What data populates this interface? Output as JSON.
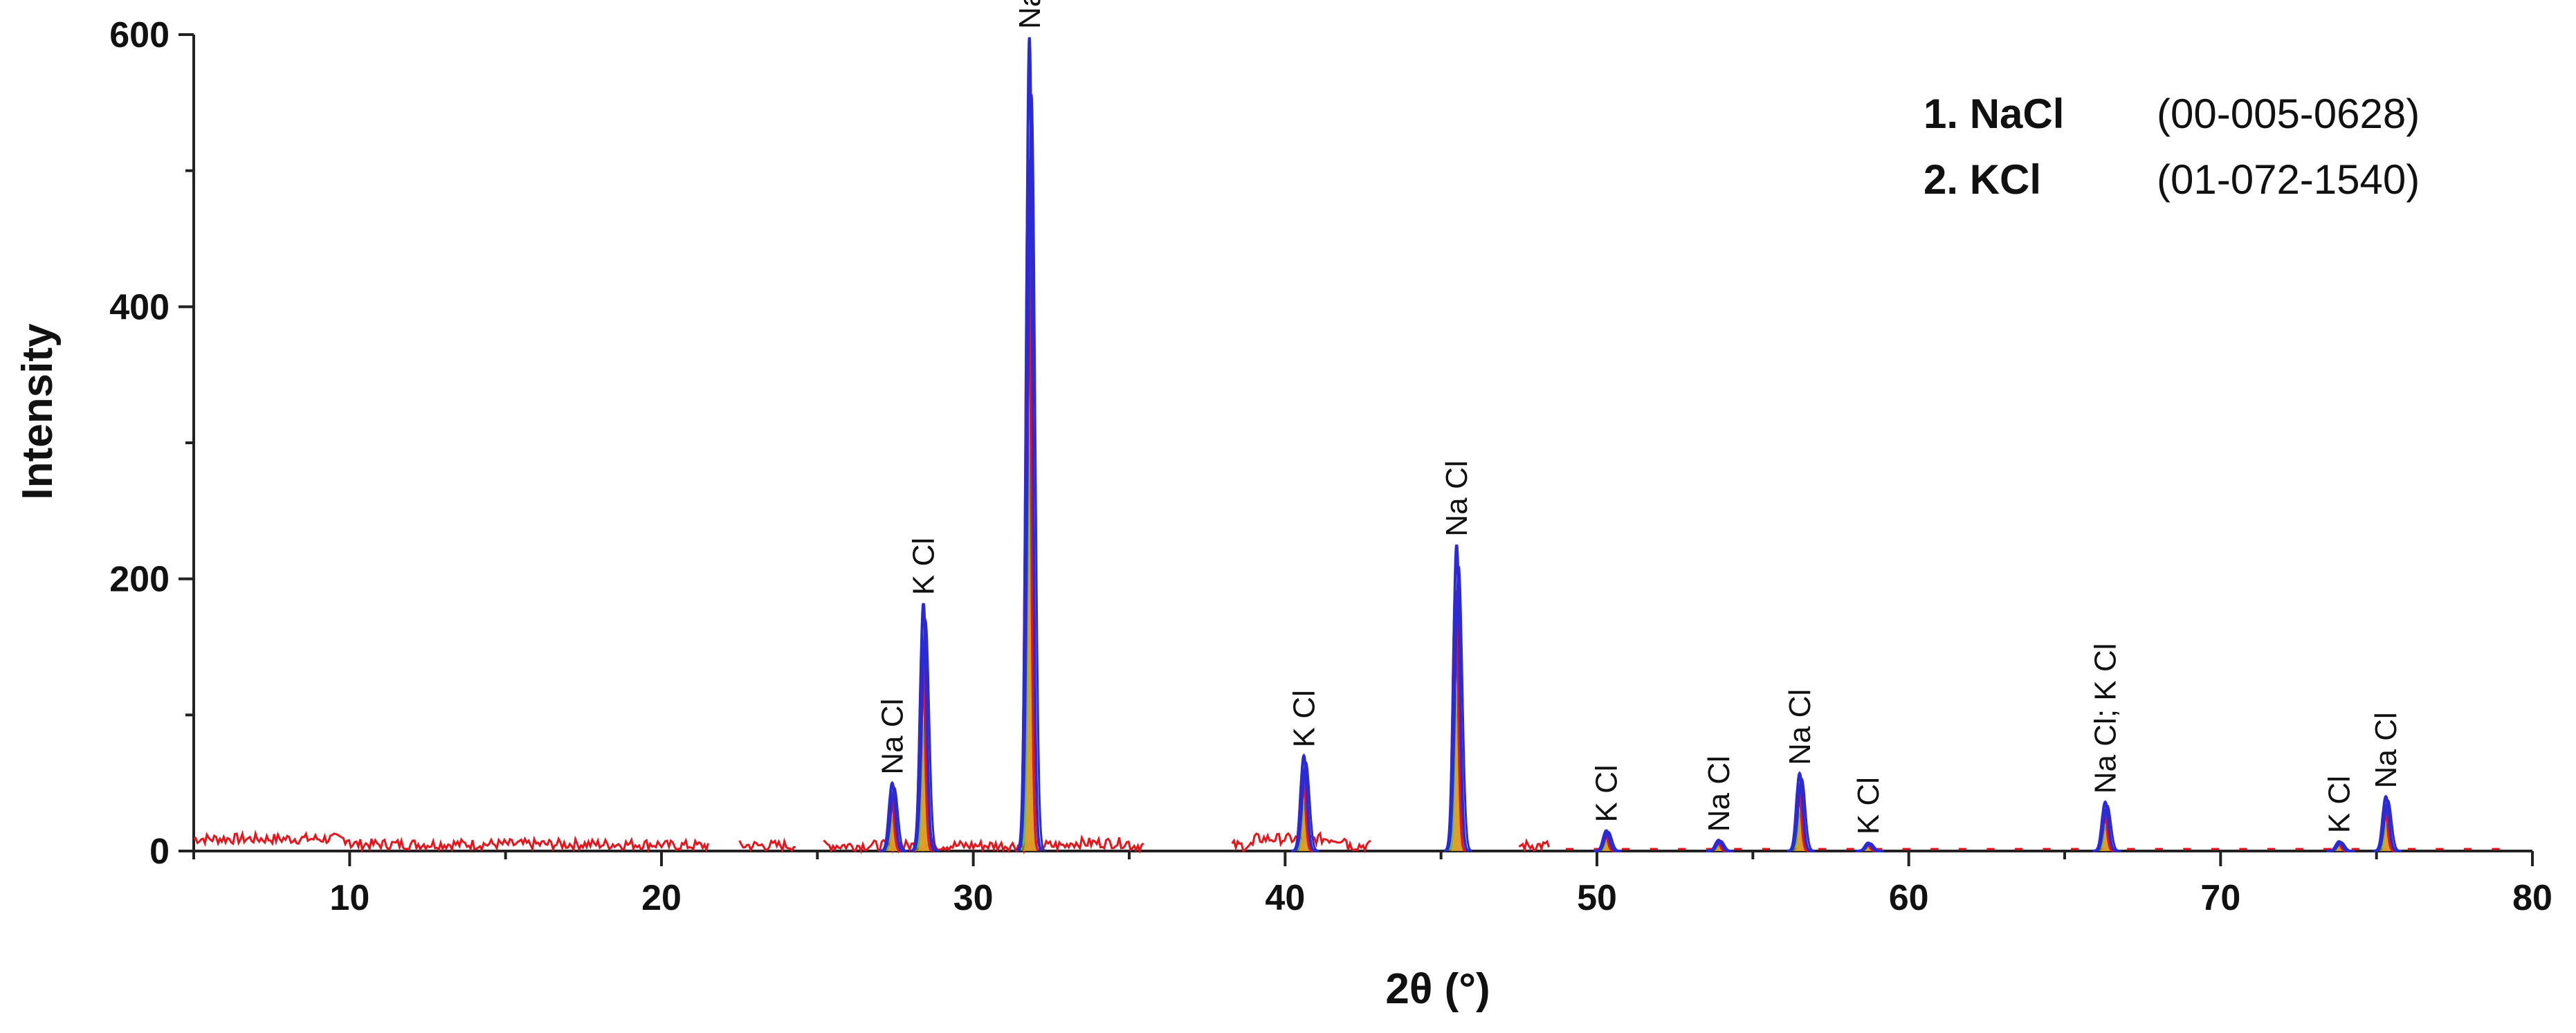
{
  "chart_data": {
    "type": "line",
    "title": "",
    "xlabel": "2θ (°)",
    "ylabel": "Intensity",
    "xlim": [
      5,
      80
    ],
    "ylim": [
      0,
      600
    ],
    "grid": false,
    "x_ticks": [
      10,
      20,
      30,
      40,
      50,
      60,
      70,
      80
    ],
    "y_ticks": [
      0,
      200,
      400,
      600
    ],
    "legend": [
      {
        "label": "1. NaCl",
        "code": "(00-005-0628)"
      },
      {
        "label": "2. KCl",
        "code": "(01-072-1540)"
      }
    ],
    "peaks": [
      {
        "x": 27.4,
        "y": 50,
        "label": "Na Cl"
      },
      {
        "x": 28.4,
        "y": 182,
        "label": "K Cl"
      },
      {
        "x": 31.8,
        "y": 598,
        "label": "Na Cl"
      },
      {
        "x": 40.6,
        "y": 70,
        "label": "K Cl"
      },
      {
        "x": 45.5,
        "y": 225,
        "label": "Na Cl"
      },
      {
        "x": 50.3,
        "y": 15,
        "label": "K Cl"
      },
      {
        "x": 53.9,
        "y": 8,
        "label": "Na Cl"
      },
      {
        "x": 56.5,
        "y": 57,
        "label": "Na Cl"
      },
      {
        "x": 58.7,
        "y": 6,
        "label": "K Cl"
      },
      {
        "x": 66.3,
        "y": 36,
        "label": "Na Cl; K Cl"
      },
      {
        "x": 73.8,
        "y": 7,
        "label": "K Cl"
      },
      {
        "x": 75.3,
        "y": 40,
        "label": "Na Cl"
      }
    ],
    "colors": {
      "background_trace": "#e8141c",
      "blue_fit": "#2b2bd6",
      "red_fit": "#e8141c",
      "orange_fit": "#f39a1e",
      "green_fit": "#3aa83a",
      "axis": "#222222"
    }
  }
}
